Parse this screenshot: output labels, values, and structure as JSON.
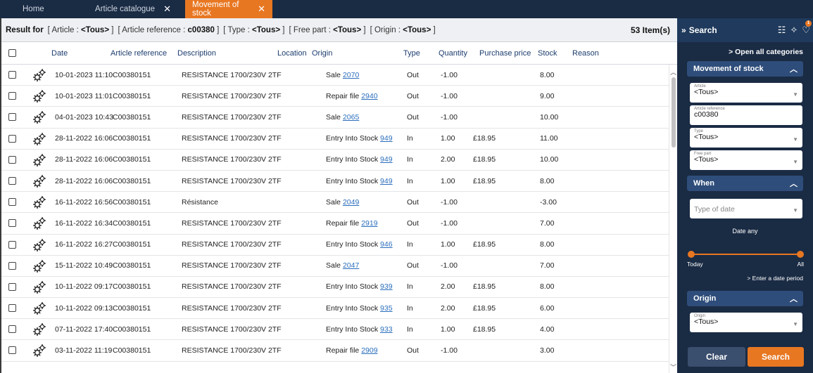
{
  "tabs": [
    {
      "label": "Home"
    },
    {
      "label": "Article catalogue",
      "close": "✕"
    },
    {
      "label": "Movement of stock",
      "close": "✕"
    }
  ],
  "result": {
    "prefix": "Result for",
    "criteria": [
      {
        "name": "Article",
        "value": "<Tous>"
      },
      {
        "name": "Article reference",
        "value": "c00380"
      },
      {
        "name": "Type",
        "value": "<Tous>"
      },
      {
        "name": "Free part",
        "value": "<Tous>"
      },
      {
        "name": "Origin",
        "value": "<Tous>"
      }
    ],
    "count": "53 Item(s)"
  },
  "columns": {
    "date": "Date",
    "ref": "Article reference",
    "desc": "Description",
    "location": "Location",
    "origin": "Origin",
    "type": "Type",
    "quantity": "Quantity",
    "price": "Purchase price",
    "stock": "Stock",
    "reason": "Reason"
  },
  "rows": [
    {
      "date": "10-01-2023 11:10",
      "ref": "C00380151",
      "desc": "RESISTANCE 1700/230V 2TF",
      "origin": "Sale",
      "link": "2070",
      "type": "Out",
      "qty": "-1.00",
      "price": "",
      "stock": "8.00"
    },
    {
      "date": "10-01-2023 11:01",
      "ref": "C00380151",
      "desc": "RESISTANCE 1700/230V 2TF",
      "origin": "Repair file",
      "link": "2940",
      "type": "Out",
      "qty": "-1.00",
      "price": "",
      "stock": "9.00"
    },
    {
      "date": "04-01-2023 10:43",
      "ref": "C00380151",
      "desc": "RESISTANCE 1700/230V 2TF",
      "origin": "Sale",
      "link": "2065",
      "type": "Out",
      "qty": "-1.00",
      "price": "",
      "stock": "10.00"
    },
    {
      "date": "28-11-2022 16:06",
      "ref": "C00380151",
      "desc": "RESISTANCE 1700/230V 2TF",
      "origin": "Entry Into Stock",
      "link": "949",
      "type": "In",
      "qty": "1.00",
      "price": "£18.95",
      "stock": "11.00"
    },
    {
      "date": "28-11-2022 16:06",
      "ref": "C00380151",
      "desc": "RESISTANCE 1700/230V 2TF",
      "origin": "Entry Into Stock",
      "link": "949",
      "type": "In",
      "qty": "2.00",
      "price": "£18.95",
      "stock": "10.00"
    },
    {
      "date": "28-11-2022 16:06",
      "ref": "C00380151",
      "desc": "RESISTANCE 1700/230V 2TF",
      "origin": "Entry Into Stock",
      "link": "949",
      "type": "In",
      "qty": "1.00",
      "price": "£18.95",
      "stock": "8.00"
    },
    {
      "date": "16-11-2022 16:56",
      "ref": "C00380151",
      "desc": "Résistance",
      "origin": "Sale",
      "link": "2049",
      "type": "Out",
      "qty": "-1.00",
      "price": "",
      "stock": "-3.00"
    },
    {
      "date": "16-11-2022 16:34",
      "ref": "C00380151",
      "desc": "RESISTANCE 1700/230V 2TF",
      "origin": "Repair file",
      "link": "2919",
      "type": "Out",
      "qty": "-1.00",
      "price": "",
      "stock": "7.00"
    },
    {
      "date": "16-11-2022 16:27",
      "ref": "C00380151",
      "desc": "RESISTANCE 1700/230V 2TF",
      "origin": "Entry Into Stock",
      "link": "946",
      "type": "In",
      "qty": "1.00",
      "price": "£18.95",
      "stock": "8.00"
    },
    {
      "date": "15-11-2022 10:49",
      "ref": "C00380151",
      "desc": "RESISTANCE 1700/230V 2TF",
      "origin": "Sale",
      "link": "2047",
      "type": "Out",
      "qty": "-1.00",
      "price": "",
      "stock": "7.00"
    },
    {
      "date": "10-11-2022 09:17",
      "ref": "C00380151",
      "desc": "RESISTANCE 1700/230V 2TF",
      "origin": "Entry Into Stock",
      "link": "939",
      "type": "In",
      "qty": "2.00",
      "price": "£18.95",
      "stock": "8.00"
    },
    {
      "date": "10-11-2022 09:13",
      "ref": "C00380151",
      "desc": "RESISTANCE 1700/230V 2TF",
      "origin": "Entry Into Stock",
      "link": "935",
      "type": "In",
      "qty": "2.00",
      "price": "£18.95",
      "stock": "6.00"
    },
    {
      "date": "07-11-2022 17:40",
      "ref": "C00380151",
      "desc": "RESISTANCE 1700/230V 2TF",
      "origin": "Entry Into Stock",
      "link": "933",
      "type": "In",
      "qty": "1.00",
      "price": "£18.95",
      "stock": "4.00"
    },
    {
      "date": "03-11-2022 11:19",
      "ref": "C00380151",
      "desc": "RESISTANCE 1700/230V 2TF",
      "origin": "Repair file",
      "link": "2909",
      "type": "Out",
      "qty": "-1.00",
      "price": "",
      "stock": "3.00"
    }
  ],
  "sidebar": {
    "title": "Search",
    "open_all": "> Open all categories",
    "movement_section": "Movement of stock",
    "article_label": "Article",
    "article_value": "<Tous>",
    "ref_label": "Article reference",
    "ref_value": "c00380",
    "type_label": "Type",
    "type_value": "<Tous>",
    "freepart_label": "Free part",
    "freepart_value": "<Tous>",
    "when_section": "When",
    "type_of_date": "Type of date",
    "date_any": "Date any",
    "today": "Today",
    "all": "All",
    "enter_period": "> Enter a date period",
    "origin_section": "Origin",
    "origin_label": "Origin",
    "origin_value": "<Tous>",
    "badge": "1",
    "clear": "Clear",
    "search": "Search"
  },
  "colors": {
    "accent": "#e87722",
    "navy": "#1a2b44",
    "link": "#2a6ebd"
  }
}
